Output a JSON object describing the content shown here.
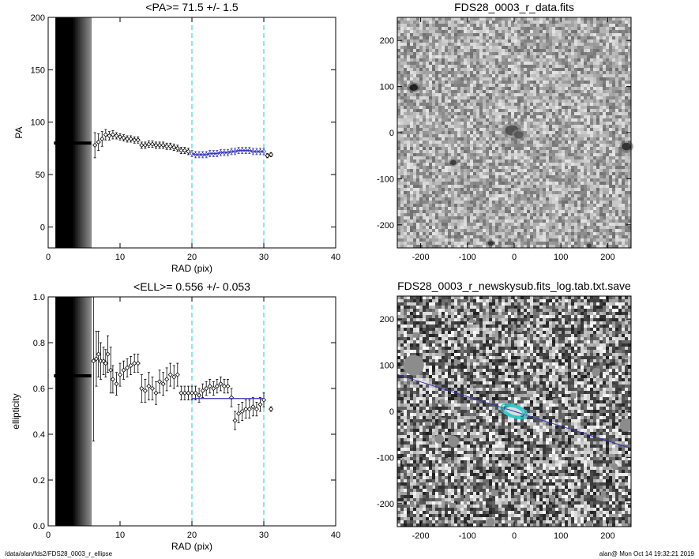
{
  "chart_data": [
    {
      "type": "scatter",
      "title": "<PA>=  71.5 +/-   1.5",
      "xlabel": "RAD (pix)",
      "ylabel": "PA",
      "xlim": [
        0,
        40
      ],
      "ylim": [
        -20,
        200
      ],
      "xticks": [
        "0",
        "10",
        "20",
        "30",
        "40"
      ],
      "yticks": [
        "0",
        "50",
        "100",
        "150",
        "200"
      ],
      "shaded_region": [
        1,
        6
      ],
      "vlines": [
        20,
        30
      ],
      "vline_color": "#22cccc",
      "points_color": "#000000",
      "fit_color": "#3333bb",
      "fit_range": [
        20,
        30
      ],
      "series": [
        {
          "points": [
            {
              "x": 6.5,
              "y": 78,
              "e": 12
            },
            {
              "x": 7.0,
              "y": 81,
              "e": 8
            },
            {
              "x": 7.5,
              "y": 84,
              "e": 7
            },
            {
              "x": 8.0,
              "y": 88,
              "e": 5
            },
            {
              "x": 8.5,
              "y": 87,
              "e": 4
            },
            {
              "x": 9.0,
              "y": 88,
              "e": 4
            },
            {
              "x": 9.5,
              "y": 87,
              "e": 3
            },
            {
              "x": 10.0,
              "y": 86,
              "e": 3
            },
            {
              "x": 10.5,
              "y": 85,
              "e": 3
            },
            {
              "x": 11.0,
              "y": 84,
              "e": 3
            },
            {
              "x": 11.5,
              "y": 84,
              "e": 3
            },
            {
              "x": 12.0,
              "y": 83,
              "e": 3
            },
            {
              "x": 12.5,
              "y": 83,
              "e": 3
            },
            {
              "x": 13.0,
              "y": 78,
              "e": 3
            },
            {
              "x": 13.5,
              "y": 78,
              "e": 3
            },
            {
              "x": 14.0,
              "y": 79,
              "e": 3
            },
            {
              "x": 14.5,
              "y": 79,
              "e": 3
            },
            {
              "x": 15.0,
              "y": 78,
              "e": 3
            },
            {
              "x": 15.5,
              "y": 78,
              "e": 3
            },
            {
              "x": 16.0,
              "y": 78,
              "e": 3
            },
            {
              "x": 16.5,
              "y": 77,
              "e": 3
            },
            {
              "x": 17.0,
              "y": 77,
              "e": 3
            },
            {
              "x": 17.5,
              "y": 76,
              "e": 3
            },
            {
              "x": 18.0,
              "y": 75,
              "e": 3
            },
            {
              "x": 18.5,
              "y": 73,
              "e": 3
            },
            {
              "x": 19.0,
              "y": 73,
              "e": 3
            },
            {
              "x": 19.5,
              "y": 72,
              "e": 3
            },
            {
              "x": 20.0,
              "y": 70,
              "e": 3
            },
            {
              "x": 20.5,
              "y": 69,
              "e": 3
            },
            {
              "x": 21.0,
              "y": 69,
              "e": 3
            },
            {
              "x": 21.5,
              "y": 69,
              "e": 3
            },
            {
              "x": 22.0,
              "y": 69,
              "e": 3
            },
            {
              "x": 22.5,
              "y": 70,
              "e": 3
            },
            {
              "x": 23.0,
              "y": 70,
              "e": 3
            },
            {
              "x": 23.5,
              "y": 70,
              "e": 3
            },
            {
              "x": 24.0,
              "y": 71,
              "e": 3
            },
            {
              "x": 24.5,
              "y": 71,
              "e": 3
            },
            {
              "x": 25.0,
              "y": 71,
              "e": 3
            },
            {
              "x": 25.5,
              "y": 72,
              "e": 3
            },
            {
              "x": 26.0,
              "y": 72,
              "e": 3
            },
            {
              "x": 26.5,
              "y": 73,
              "e": 3
            },
            {
              "x": 27.0,
              "y": 73,
              "e": 3
            },
            {
              "x": 27.5,
              "y": 73,
              "e": 3
            },
            {
              "x": 28.0,
              "y": 73,
              "e": 3
            },
            {
              "x": 28.5,
              "y": 72,
              "e": 3
            },
            {
              "x": 29.0,
              "y": 72,
              "e": 3
            },
            {
              "x": 29.5,
              "y": 72,
              "e": 3
            },
            {
              "x": 30.0,
              "y": 72,
              "e": 3
            },
            {
              "x": 30.5,
              "y": 68,
              "e": 2
            },
            {
              "x": 31.0,
              "y": 69,
              "e": 2
            }
          ]
        }
      ],
      "inner_track": {
        "x": [
          0.8,
          6.0
        ],
        "y": 80
      }
    },
    {
      "type": "scatter",
      "title": "<ELL>= 0.556 +/-  0.053",
      "xlabel": "RAD (pix)",
      "ylabel": "ellipticity",
      "xlim": [
        0,
        40
      ],
      "ylim": [
        0.0,
        1.0
      ],
      "xticks": [
        "0",
        "10",
        "20",
        "30",
        "40"
      ],
      "yticks": [
        "0.0",
        "0.2",
        "0.4",
        "0.6",
        "0.8",
        "1.0"
      ],
      "shaded_region": [
        1,
        6
      ],
      "vlines": [
        20,
        30
      ],
      "vline_color": "#22cccc",
      "points_color": "#000000",
      "fit_color": "#3333bb",
      "fit_range": [
        20,
        30
      ],
      "fit_value": 0.556,
      "series": [
        {
          "points": [
            {
              "x": 6.3,
              "y": 0.72,
              "e": 0.35
            },
            {
              "x": 6.7,
              "y": 0.73,
              "e": 0.12
            },
            {
              "x": 7.0,
              "y": 0.75,
              "e": 0.1
            },
            {
              "x": 7.3,
              "y": 0.72,
              "e": 0.08
            },
            {
              "x": 7.7,
              "y": 0.72,
              "e": 0.06
            },
            {
              "x": 8.0,
              "y": 0.71,
              "e": 0.06
            },
            {
              "x": 8.3,
              "y": 0.75,
              "e": 0.08
            },
            {
              "x": 8.7,
              "y": 0.68,
              "e": 0.1
            },
            {
              "x": 9.0,
              "y": 0.64,
              "e": 0.06
            },
            {
              "x": 9.5,
              "y": 0.62,
              "e": 0.05
            },
            {
              "x": 10.0,
              "y": 0.66,
              "e": 0.05
            },
            {
              "x": 10.5,
              "y": 0.68,
              "e": 0.04
            },
            {
              "x": 11.0,
              "y": 0.69,
              "e": 0.04
            },
            {
              "x": 11.5,
              "y": 0.7,
              "e": 0.04
            },
            {
              "x": 12.0,
              "y": 0.71,
              "e": 0.04
            },
            {
              "x": 12.5,
              "y": 0.71,
              "e": 0.04
            },
            {
              "x": 13.0,
              "y": 0.6,
              "e": 0.06
            },
            {
              "x": 13.5,
              "y": 0.59,
              "e": 0.05
            },
            {
              "x": 14.0,
              "y": 0.61,
              "e": 0.06
            },
            {
              "x": 14.5,
              "y": 0.6,
              "e": 0.05
            },
            {
              "x": 15.0,
              "y": 0.58,
              "e": 0.05
            },
            {
              "x": 15.5,
              "y": 0.63,
              "e": 0.05
            },
            {
              "x": 16.0,
              "y": 0.62,
              "e": 0.05
            },
            {
              "x": 16.5,
              "y": 0.64,
              "e": 0.05
            },
            {
              "x": 17.0,
              "y": 0.66,
              "e": 0.05
            },
            {
              "x": 17.5,
              "y": 0.65,
              "e": 0.05
            },
            {
              "x": 18.0,
              "y": 0.66,
              "e": 0.05
            },
            {
              "x": 18.5,
              "y": 0.58,
              "e": 0.03
            },
            {
              "x": 19.0,
              "y": 0.58,
              "e": 0.03
            },
            {
              "x": 19.5,
              "y": 0.58,
              "e": 0.03
            },
            {
              "x": 20.0,
              "y": 0.58,
              "e": 0.03
            },
            {
              "x": 20.5,
              "y": 0.58,
              "e": 0.03
            },
            {
              "x": 21.0,
              "y": 0.57,
              "e": 0.03
            },
            {
              "x": 21.5,
              "y": 0.59,
              "e": 0.03
            },
            {
              "x": 22.0,
              "y": 0.6,
              "e": 0.03
            },
            {
              "x": 22.5,
              "y": 0.61,
              "e": 0.03
            },
            {
              "x": 23.0,
              "y": 0.6,
              "e": 0.03
            },
            {
              "x": 23.5,
              "y": 0.61,
              "e": 0.03
            },
            {
              "x": 24.0,
              "y": 0.62,
              "e": 0.03
            },
            {
              "x": 24.5,
              "y": 0.61,
              "e": 0.03
            },
            {
              "x": 25.0,
              "y": 0.61,
              "e": 0.03
            },
            {
              "x": 25.5,
              "y": 0.56,
              "e": 0.04
            },
            {
              "x": 26.0,
              "y": 0.46,
              "e": 0.04
            },
            {
              "x": 26.5,
              "y": 0.49,
              "e": 0.04
            },
            {
              "x": 27.0,
              "y": 0.5,
              "e": 0.04
            },
            {
              "x": 27.5,
              "y": 0.51,
              "e": 0.04
            },
            {
              "x": 28.0,
              "y": 0.51,
              "e": 0.04
            },
            {
              "x": 28.5,
              "y": 0.52,
              "e": 0.04
            },
            {
              "x": 29.0,
              "y": 0.51,
              "e": 0.03
            },
            {
              "x": 29.5,
              "y": 0.53,
              "e": 0.03
            },
            {
              "x": 30.0,
              "y": 0.55,
              "e": 0.03
            },
            {
              "x": 31.0,
              "y": 0.51,
              "e": 0.01
            }
          ]
        }
      ],
      "inner_track": {
        "x": [
          0.8,
          6.0
        ],
        "y": 0.655
      }
    },
    {
      "type": "heatmap",
      "title": "FDS28_0003_r_data.fits",
      "xlim": [
        -250,
        250
      ],
      "ylim": [
        -250,
        250
      ],
      "xticks": [
        "-200",
        "-100",
        "0",
        "100",
        "200"
      ],
      "yticks": [
        "-200",
        "-100",
        "0",
        "100",
        "200"
      ],
      "sources": [
        {
          "x": -215,
          "y": 98,
          "r": 9,
          "shade": 20
        },
        {
          "x": -5,
          "y": 5,
          "r": 14,
          "shade": 70
        },
        {
          "x": 10,
          "y": -5,
          "r": 10,
          "shade": 80
        },
        {
          "x": -130,
          "y": -65,
          "r": 7,
          "shade": 50
        },
        {
          "x": -205,
          "y": -70,
          "r": 4,
          "shade": 110
        },
        {
          "x": 240,
          "y": -30,
          "r": 10,
          "shade": 40
        },
        {
          "x": -50,
          "y": -240,
          "r": 6,
          "shade": 40
        },
        {
          "x": 160,
          "y": -245,
          "r": 5,
          "shade": 50
        }
      ]
    },
    {
      "type": "heatmap",
      "title": "FDS28_0003_r_newskysub.fits_log.tab.txt.save",
      "xlim": [
        -250,
        250
      ],
      "ylim": [
        -250,
        250
      ],
      "xticks": [
        "-200",
        "-100",
        "0",
        "100",
        "200"
      ],
      "yticks": [
        "-200",
        "-100",
        "0",
        "100",
        "200"
      ],
      "line_color": "#3333bb",
      "ellipse_color": "#22cccc",
      "pa_line": {
        "x1": -250,
        "y1": 80,
        "x2": 250,
        "y2": -80
      },
      "ellipse_sma": [
        20,
        25,
        30
      ],
      "ellipse_ell": 0.556,
      "ellipse_pa": 71.5,
      "masked_blocks": [
        {
          "x": -215,
          "y": 100,
          "r": 22
        },
        {
          "x": 175,
          "y": 85,
          "r": 9
        },
        {
          "x": -160,
          "y": -60,
          "r": 10
        },
        {
          "x": -130,
          "y": -65,
          "r": 12
        },
        {
          "x": 240,
          "y": -30,
          "r": 14
        },
        {
          "x": -50,
          "y": -240,
          "r": 9
        },
        {
          "x": 160,
          "y": -245,
          "r": 8
        },
        {
          "x": 215,
          "y": -120,
          "r": 7
        }
      ]
    }
  ],
  "footer": {
    "left": "/data/alan/fds2/FDS28_0003_r_ellipse",
    "right": "alan@  Mon Oct 14 19:32:21 2019"
  }
}
